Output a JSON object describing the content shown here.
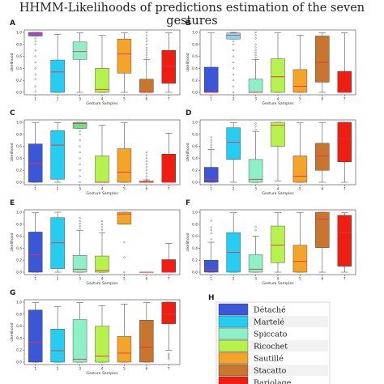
{
  "title": "HHMM-Likelihoods of predictions estimation of the seven gestures",
  "chart_data": [
    {
      "type": "box",
      "panel": "A",
      "xlabel": "Gesture Samples",
      "ylabel": "Likelihood",
      "ylim": [
        0,
        1
      ],
      "yticks": [
        "0.0",
        "0.2",
        "0.4",
        "0.6",
        "0.8",
        "1.0"
      ],
      "categories": [
        "1",
        "2",
        "3",
        "4",
        "5",
        "6",
        "7"
      ],
      "series": [
        {
          "q1": 0.94,
          "median": 0.99,
          "q3": 1.0,
          "whislo": 0.94,
          "whishi": 1.0,
          "outliers": [
            0.1,
            0.02,
            0.22,
            0.3,
            0.4,
            0.5,
            0.6,
            0.7,
            0.8,
            0.85,
            0.9
          ]
        },
        {
          "q1": 0.0,
          "median": 0.34,
          "q3": 0.54,
          "whislo": 0.0,
          "whishi": 0.97
        },
        {
          "q1": 0.55,
          "median": 0.68,
          "q3": 0.84,
          "whislo": 0.0,
          "whishi": 0.99
        },
        {
          "q1": 0.0,
          "median": 0.05,
          "q3": 0.4,
          "whislo": 0.0,
          "whishi": 0.95
        },
        {
          "q1": 0.32,
          "median": 0.64,
          "q3": 0.89,
          "whislo": 0.0,
          "whishi": 0.99
        },
        {
          "q1": 0.0,
          "median": 0.0,
          "q3": 0.22,
          "whislo": 0.0,
          "whishi": 0.55,
          "outliers": [
            0.58,
            0.62,
            0.66,
            0.7,
            0.74,
            0.8,
            0.85,
            0.9,
            0.95,
            1.0
          ]
        },
        {
          "q1": 0.15,
          "median": 0.44,
          "q3": 0.7,
          "whislo": 0.0,
          "whishi": 0.99
        }
      ]
    },
    {
      "type": "box",
      "panel": "B",
      "xlabel": "Gesture Samples",
      "ylabel": "Likelihood",
      "ylim": [
        0,
        1
      ],
      "yticks": [
        "0.0",
        "0.2",
        "0.4",
        "0.6",
        "0.8",
        "1.0"
      ],
      "categories": [
        "1",
        "2",
        "3",
        "4",
        "5",
        "6",
        "7"
      ],
      "series": [
        {
          "q1": 0.0,
          "median": 0.0,
          "q3": 0.42,
          "whislo": 0.0,
          "whishi": 0.99
        },
        {
          "q1": 0.89,
          "median": 0.95,
          "q3": 0.99,
          "whislo": 0.89,
          "whishi": 1.0,
          "outliers": [
            0.0,
            0.1,
            0.2,
            0.3,
            0.4,
            0.5,
            0.6,
            0.7,
            0.8,
            0.85
          ]
        },
        {
          "q1": 0.0,
          "median": 0.0,
          "q3": 0.22,
          "whislo": 0.0,
          "whishi": 0.55,
          "outliers": [
            0.58,
            0.62,
            0.66,
            0.7,
            0.75,
            0.8,
            0.9,
            0.95,
            1.0
          ]
        },
        {
          "q1": 0.0,
          "median": 0.26,
          "q3": 0.56,
          "whislo": 0.0,
          "whishi": 0.99
        },
        {
          "q1": 0.0,
          "median": 0.1,
          "q3": 0.38,
          "whislo": 0.0,
          "whishi": 0.95
        },
        {
          "q1": 0.17,
          "median": 0.5,
          "q3": 0.94,
          "whislo": 0.0,
          "whishi": 0.99
        },
        {
          "q1": 0.0,
          "median": 0.0,
          "q3": 0.35,
          "whislo": 0.0,
          "whishi": 0.99
        }
      ]
    },
    {
      "type": "box",
      "panel": "C",
      "xlabel": "Gesture Samples",
      "ylabel": "Likelihood",
      "ylim": [
        0,
        1
      ],
      "yticks": [
        "0.0",
        "0.2",
        "0.4",
        "0.6",
        "0.8",
        "1.0"
      ],
      "categories": [
        "1",
        "2",
        "3",
        "4",
        "5",
        "6",
        "7"
      ],
      "series": [
        {
          "q1": 0.0,
          "median": 0.31,
          "q3": 0.64,
          "whislo": 0.0,
          "whishi": 0.99
        },
        {
          "q1": 0.05,
          "median": 0.62,
          "q3": 0.86,
          "whislo": 0.0,
          "whishi": 0.99
        },
        {
          "q1": 0.9,
          "median": 0.98,
          "q3": 1.0,
          "whislo": 0.9,
          "whishi": 1.0,
          "outliers": [
            0.0,
            0.1,
            0.2,
            0.3,
            0.4,
            0.5,
            0.6,
            0.7,
            0.8,
            0.85
          ]
        },
        {
          "q1": 0.0,
          "median": 0.0,
          "q3": 0.44,
          "whislo": 0.0,
          "whishi": 0.95
        },
        {
          "q1": 0.0,
          "median": 0.17,
          "q3": 0.56,
          "whislo": 0.0,
          "whishi": 0.99
        },
        {
          "q1": 0.0,
          "median": 0.0,
          "q3": 0.02,
          "whislo": 0.0,
          "whishi": 0.04,
          "outliers": [
            0.05,
            0.1,
            0.15,
            0.2,
            0.25,
            0.3,
            0.35,
            0.4,
            0.45,
            0.5
          ]
        },
        {
          "q1": 0.0,
          "median": 0.0,
          "q3": 0.47,
          "whislo": 0.0,
          "whishi": 0.82
        }
      ]
    },
    {
      "type": "box",
      "panel": "D",
      "xlabel": "Gesture Samples",
      "ylabel": "Likelihood",
      "ylim": [
        0,
        1
      ],
      "yticks": [
        "0.0",
        "0.2",
        "0.4",
        "0.6",
        "0.8",
        "1.0"
      ],
      "categories": [
        "1",
        "2",
        "3",
        "4",
        "5",
        "6",
        "7"
      ],
      "series": [
        {
          "q1": 0.0,
          "median": 0.05,
          "q3": 0.25,
          "whislo": 0.0,
          "whishi": 0.55,
          "outliers": [
            0.58,
            0.62,
            0.66,
            0.7,
            0.75
          ]
        },
        {
          "q1": 0.38,
          "median": 0.67,
          "q3": 0.91,
          "whislo": 0.0,
          "whishi": 0.99
        },
        {
          "q1": 0.0,
          "median": 0.05,
          "q3": 0.38,
          "whislo": 0.0,
          "whishi": 0.85,
          "outliers": [
            0.88,
            0.93,
            0.98
          ]
        },
        {
          "q1": 0.6,
          "median": 0.95,
          "q3": 1.0,
          "whislo": 0.02,
          "whishi": 1.0
        },
        {
          "q1": 0.0,
          "median": 0.1,
          "q3": 0.44,
          "whislo": 0.0,
          "whishi": 0.99
        },
        {
          "q1": 0.2,
          "median": 0.44,
          "q3": 0.65,
          "whislo": 0.0,
          "whishi": 0.99
        },
        {
          "q1": 0.34,
          "median": 0.72,
          "q3": 1.0,
          "whislo": 0.0,
          "whishi": 1.0
        }
      ]
    },
    {
      "type": "box",
      "panel": "E",
      "xlabel": "Gesture Samples",
      "ylabel": "Likelihood",
      "ylim": [
        0,
        1
      ],
      "yticks": [
        "0.0",
        "0.2",
        "0.4",
        "0.6",
        "0.8",
        "1.0"
      ],
      "categories": [
        "1",
        "2",
        "3",
        "4",
        "5",
        "6",
        "7"
      ],
      "series": [
        {
          "q1": 0.0,
          "median": 0.29,
          "q3": 0.67,
          "whislo": 0.0,
          "whishi": 0.99
        },
        {
          "q1": 0.06,
          "median": 0.49,
          "q3": 0.91,
          "whislo": 0.0,
          "whishi": 1.0
        },
        {
          "q1": 0.0,
          "median": 0.05,
          "q3": 0.28,
          "whislo": 0.0,
          "whishi": 0.7,
          "outliers": [
            0.73,
            0.77,
            0.81,
            0.85,
            0.9
          ]
        },
        {
          "q1": 0.0,
          "median": 0.03,
          "q3": 0.27,
          "whislo": 0.0,
          "whishi": 0.66,
          "outliers": [
            0.7,
            0.75,
            0.8,
            0.85
          ]
        },
        {
          "q1": 0.8,
          "median": 0.97,
          "q3": 1.0,
          "whislo": 0.8,
          "whishi": 1.0,
          "outliers": [
            0.0,
            0.25,
            0.5
          ]
        },
        {
          "q1": 0.0,
          "median": 0.0,
          "q3": 0.0,
          "whislo": 0.0,
          "whishi": 0.0
        },
        {
          "q1": 0.0,
          "median": 0.0,
          "q3": 0.21,
          "whislo": 0.0,
          "whishi": 0.48
        }
      ]
    },
    {
      "type": "box",
      "panel": "F",
      "xlabel": "Gesture Samples",
      "ylabel": "Likelihood",
      "ylim": [
        0,
        1
      ],
      "yticks": [
        "0.0",
        "0.2",
        "0.4",
        "0.6",
        "0.8",
        "1.0"
      ],
      "categories": [
        "1",
        "2",
        "3",
        "4",
        "5",
        "6",
        "7"
      ],
      "series": [
        {
          "q1": 0.0,
          "median": 0.04,
          "q3": 0.2,
          "whislo": 0.0,
          "whishi": 0.5,
          "outliers": [
            0.55,
            0.65,
            0.7,
            0.75,
            0.86
          ]
        },
        {
          "q1": 0.0,
          "median": 0.33,
          "q3": 0.66,
          "whislo": 0.0,
          "whishi": 0.99
        },
        {
          "q1": 0.0,
          "median": 0.05,
          "q3": 0.29,
          "whislo": 0.0,
          "whishi": 0.6,
          "outliers": [
            0.7,
            0.76
          ]
        },
        {
          "q1": 0.16,
          "median": 0.45,
          "q3": 0.77,
          "whislo": 0.0,
          "whishi": 0.99
        },
        {
          "q1": 0.0,
          "median": 0.18,
          "q3": 0.45,
          "whislo": 0.0,
          "whishi": 0.99
        },
        {
          "q1": 0.41,
          "median": 0.89,
          "q3": 1.0,
          "whislo": 0.0,
          "whishi": 1.0
        },
        {
          "q1": 0.1,
          "median": 0.66,
          "q3": 0.95,
          "whislo": 0.0,
          "whishi": 0.99
        }
      ]
    },
    {
      "type": "box",
      "panel": "G",
      "xlabel": "Gesture Samples",
      "ylabel": "Likelihood",
      "ylim": [
        0,
        1
      ],
      "yticks": [
        "0.0",
        "0.2",
        "0.4",
        "0.6",
        "0.8",
        "1.0"
      ],
      "categories": [
        "1",
        "2",
        "3",
        "4",
        "5",
        "6",
        "7"
      ],
      "series": [
        {
          "q1": 0.0,
          "median": 0.33,
          "q3": 0.87,
          "whislo": 0.0,
          "whishi": 0.99
        },
        {
          "q1": 0.0,
          "median": 0.19,
          "q3": 0.55,
          "whislo": 0.0,
          "whishi": 0.93
        },
        {
          "q1": 0.0,
          "median": 0.05,
          "q3": 0.71,
          "whislo": 0.0,
          "whishi": 0.99
        },
        {
          "q1": 0.0,
          "median": 0.1,
          "q3": 0.6,
          "whislo": 0.0,
          "whishi": 0.94
        },
        {
          "q1": 0.0,
          "median": 0.15,
          "q3": 0.43,
          "whislo": 0.0,
          "whishi": 0.97
        },
        {
          "q1": 0.0,
          "median": 0.25,
          "q3": 0.7,
          "whislo": 0.0,
          "whishi": 0.99
        },
        {
          "q1": 0.64,
          "median": 0.8,
          "q3": 1.0,
          "whislo": 0.2,
          "whishi": 1.0,
          "outliers": [
            0.05,
            0.08,
            0.11,
            0.14
          ]
        }
      ]
    }
  ],
  "legend": {
    "panel": "H",
    "entries": [
      {
        "label": "Détaché",
        "color": "#3b57d8"
      },
      {
        "label": "Martelé",
        "color": "#25cef0"
      },
      {
        "label": "Spiccato",
        "color": "#8ef0c6"
      },
      {
        "label": "Ricochet",
        "color": "#b6f14e"
      },
      {
        "label": "Sautillé",
        "color": "#f5a42a"
      },
      {
        "label": "Stacatto",
        "color": "#c8762f"
      },
      {
        "label": "Bariolage",
        "color": "#ee1f12"
      }
    ]
  },
  "special_colors": {
    "panel_A_box1": "#7d5bd6",
    "panel_B_box2": "#85d9f2",
    "panel_C_box3": "#6fdc88",
    "median": "#e8324c"
  }
}
